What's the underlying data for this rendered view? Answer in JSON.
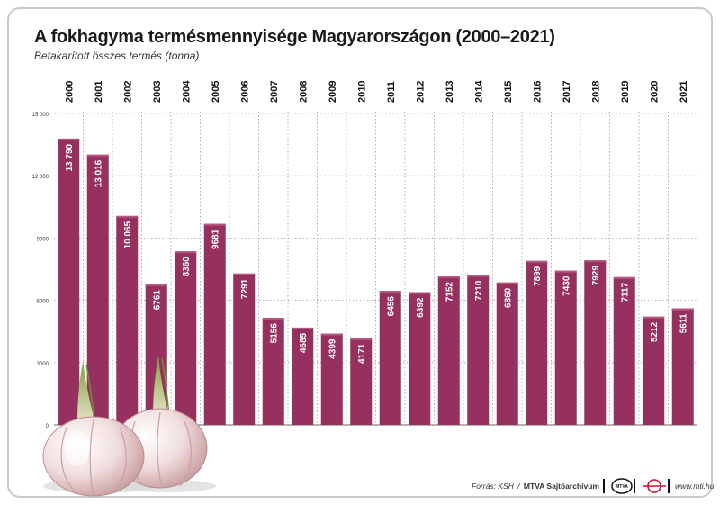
{
  "header": {
    "title": "A fokhagyma termésmennyisége Magyarországon (2000–2021)",
    "subtitle": "Betakarított összes termés (tonna)"
  },
  "chart_data": {
    "type": "bar",
    "categories": [
      "2000",
      "2001",
      "2002",
      "2003",
      "2004",
      "2005",
      "2006",
      "2007",
      "2008",
      "2009",
      "2010",
      "2011",
      "2012",
      "2013",
      "2014",
      "2015",
      "2016",
      "2017",
      "2018",
      "2019",
      "2020",
      "2021"
    ],
    "values": [
      13790,
      13016,
      10065,
      6761,
      8360,
      9681,
      7291,
      5156,
      4685,
      4399,
      4171,
      6456,
      6392,
      7152,
      7210,
      6860,
      7899,
      7430,
      7929,
      7117,
      5212,
      5611
    ],
    "value_labels": [
      "13 790",
      "13 016",
      "10 065",
      "6761",
      "8360",
      "9681",
      "7291",
      "5156",
      "4685",
      "4399",
      "4171",
      "6456",
      "6392",
      "7152",
      "7210",
      "6860",
      "7899",
      "7430",
      "7929",
      "7117",
      "5212",
      "5611"
    ],
    "ylim": [
      0,
      15000
    ],
    "yticks": [
      0,
      3000,
      6000,
      9000,
      12000,
      15000
    ],
    "ytick_labels": [
      "0",
      "3000",
      "6000",
      "9000",
      "12 000",
      "15 000"
    ],
    "grid": true,
    "bar_color": "#96305f",
    "label_color": "#ffffff"
  },
  "footer": {
    "source_prefix": "Forrás: KSH",
    "separator": "/",
    "archive": "MTVA Sajtóarchívum",
    "logo1_text": "MTVA",
    "website": "www.mti.hu"
  },
  "decoration": {
    "illustration": "garlic-bulbs-illustration"
  }
}
